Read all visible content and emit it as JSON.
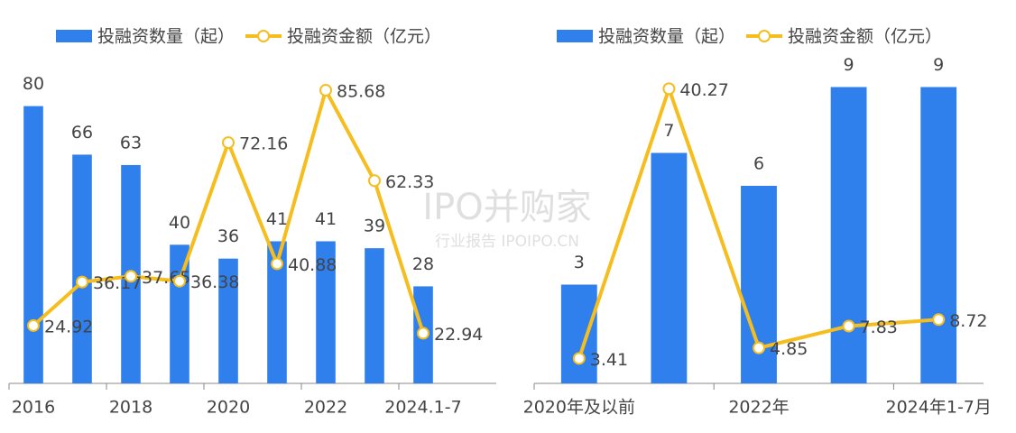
{
  "chart_data": [
    {
      "type": "combo",
      "categories": [
        "2016",
        null,
        "2018",
        null,
        "2020",
        null,
        "2022",
        null,
        "2024.1-7"
      ],
      "series": [
        {
          "name": "投融资数量（起）",
          "type": "bar",
          "color": "#2f80ed",
          "values": [
            80,
            66,
            63,
            40,
            36,
            41,
            41,
            39,
            28
          ]
        },
        {
          "name": "投融资金额（亿元）",
          "type": "line",
          "axis": "y2",
          "color": "#f5bd1e",
          "values": [
            24.92,
            36.17,
            37.65,
            36.38,
            72.16,
            40.88,
            85.68,
            62.33,
            22.94
          ]
        }
      ],
      "ylim": [
        0,
        95
      ],
      "y2lim": [
        10,
        95
      ],
      "legend": "top"
    },
    {
      "type": "combo",
      "categories": [
        "2020年及以前",
        null,
        "2022年",
        null,
        "2024年1-7月"
      ],
      "series": [
        {
          "name": "投融资数量（起）",
          "type": "bar",
          "color": "#2f80ed",
          "values": [
            3,
            7,
            6,
            9,
            9
          ]
        },
        {
          "name": "投融资金额（亿元）",
          "type": "line",
          "axis": "y2",
          "color": "#f5bd1e",
          "values": [
            3.41,
            40.27,
            4.85,
            7.83,
            8.72
          ]
        }
      ],
      "ylim": [
        0,
        10
      ],
      "y2lim": [
        0,
        45
      ],
      "legend": "top"
    }
  ],
  "watermark": {
    "brand": "IPO并购家",
    "subtitle": "行业报告 IPOIPO.CN"
  }
}
